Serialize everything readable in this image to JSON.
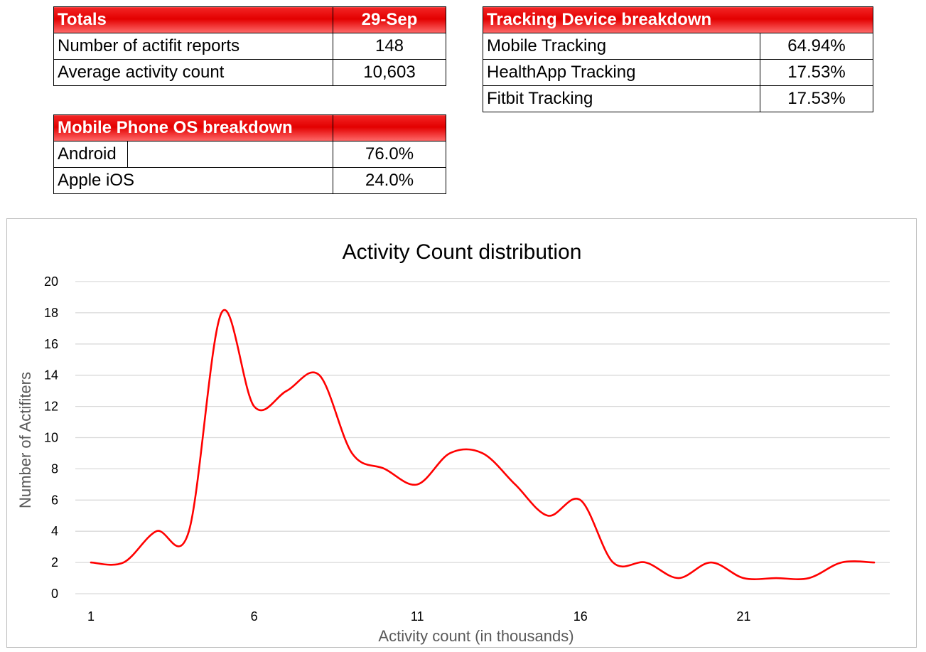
{
  "totals": {
    "header": "Totals",
    "date": "29-Sep",
    "rows": [
      {
        "label": "Number of actifit reports",
        "value": "148"
      },
      {
        "label": "Average activity count",
        "value": "10,603"
      }
    ]
  },
  "tracking": {
    "header": "Tracking Device breakdown",
    "rows": [
      {
        "label": "Mobile Tracking",
        "value": "64.94%"
      },
      {
        "label": "HealthApp Tracking",
        "value": "17.53%"
      },
      {
        "label": "Fitbit Tracking",
        "value": "17.53%"
      }
    ]
  },
  "mobile_os": {
    "header": "Mobile Phone OS breakdown",
    "rows": [
      {
        "label": "Android",
        "value": "76.0%"
      },
      {
        "label": "Apple iOS",
        "value": "24.0%"
      }
    ]
  },
  "colors": {
    "header_red": "#e30000",
    "line_red": "#ff0000",
    "grid": "#d9d9d9"
  },
  "chart_data": {
    "type": "line",
    "title": "Activity Count distribution",
    "xlabel": "Activity count (in thousands)",
    "ylabel": "Number of Actifiters",
    "x": [
      1,
      2,
      3,
      4,
      5,
      6,
      7,
      8,
      9,
      10,
      11,
      12,
      13,
      14,
      15,
      16,
      17,
      18,
      19,
      20,
      21,
      22,
      23,
      24,
      25
    ],
    "series": [
      {
        "name": "",
        "values": [
          2,
          2,
          4,
          4,
          18,
          12,
          13,
          14,
          9,
          8,
          7,
          9,
          9,
          7,
          5,
          6,
          2,
          2,
          1,
          2,
          1,
          1,
          1,
          2,
          2
        ]
      }
    ],
    "xticks": [
      1,
      6,
      11,
      16,
      21
    ],
    "yticks": [
      0,
      2,
      4,
      6,
      8,
      10,
      12,
      14,
      16,
      18,
      20
    ],
    "xlim": [
      1,
      25
    ],
    "ylim": [
      0,
      20
    ],
    "grid": true,
    "smooth": true
  }
}
